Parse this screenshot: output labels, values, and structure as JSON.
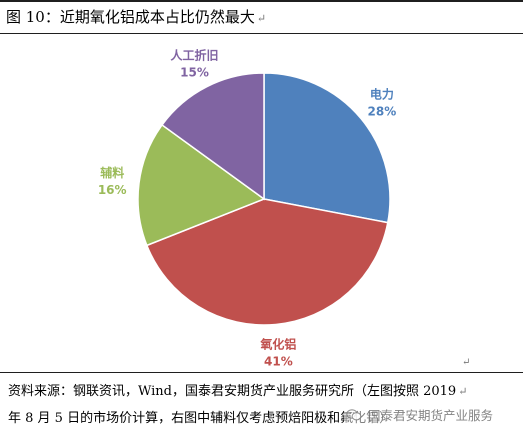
{
  "header": {
    "title": "图 10：近期氧化铝成本占比仍然最大",
    "return_mark": "↵"
  },
  "chart_data": {
    "type": "pie",
    "title": "",
    "start_angle_deg": 0,
    "direction": "clockwise",
    "labels": [
      "电力",
      "氧化铝",
      "辅料",
      "人工折旧"
    ],
    "values": [
      28,
      41,
      16,
      15
    ],
    "value_labels": [
      "28%",
      "41%",
      "16%",
      "15%"
    ],
    "colors": [
      "#4F81BD",
      "#C0504D",
      "#9BBB59",
      "#8064A2"
    ],
    "label_placement": "outside"
  },
  "source": {
    "line1": "资料来源：钢联资讯，Wind，国泰君安期货产业服务研究所（左图按照 2019",
    "line2": "年 8 月 5 日的市场价计算，右图中辅料仅考虑预焙阳极和氟化铝）",
    "return_mark": "↵"
  },
  "watermark": {
    "icon": "wechat-icon",
    "text": "国泰君安期货产业服务"
  }
}
